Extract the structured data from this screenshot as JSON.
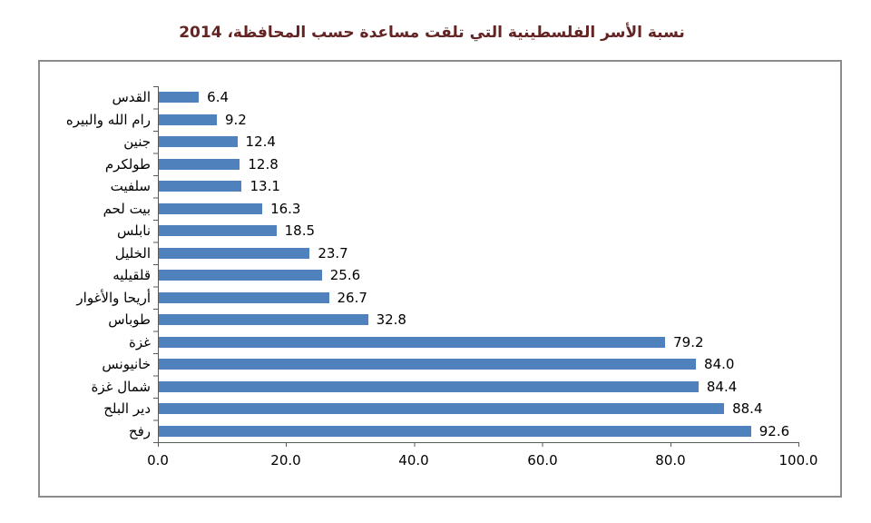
{
  "title": {
    "text": "نسبة الأسر الفلسطينية التي تلقت مساعدة حسب المحافظة، 2014",
    "color": "#632423"
  },
  "chart_data": {
    "type": "bar",
    "orientation": "horizontal",
    "title": "نسبة الأسر الفلسطينية التي تلقت مساعدة حسب المحافظة، 2014",
    "categories": [
      "القدس",
      "رام الله والبيره",
      "جنين",
      "طولكرم",
      "سلفيت",
      "بيت لحم",
      "نابلس",
      "الخليل",
      "قلقيليه",
      "أريحا والأغوار",
      "طوباس",
      "غزة",
      "خانيونس",
      "شمال غزة",
      "دير البلح",
      "رفح"
    ],
    "values": [
      6.4,
      9.2,
      12.4,
      12.8,
      13.1,
      16.3,
      18.5,
      23.7,
      25.6,
      26.7,
      32.8,
      79.2,
      84.0,
      84.4,
      88.4,
      92.6
    ],
    "value_labels": [
      "6.4",
      "9.2",
      "12.4",
      "12.8",
      "13.1",
      "16.3",
      "18.5",
      "23.7",
      "25.6",
      "26.7",
      "32.8",
      "79.2",
      "84.0",
      "84.4",
      "88.4",
      "92.6"
    ],
    "x_ticks": [
      "0.0",
      "20.0",
      "40.0",
      "60.0",
      "80.0",
      "100.0"
    ],
    "xlim": [
      0,
      100
    ],
    "xlabel": "",
    "ylabel": "",
    "bar_color": "#4F81BD",
    "axis_color": "#595959",
    "grid": "off",
    "legend": "none"
  }
}
